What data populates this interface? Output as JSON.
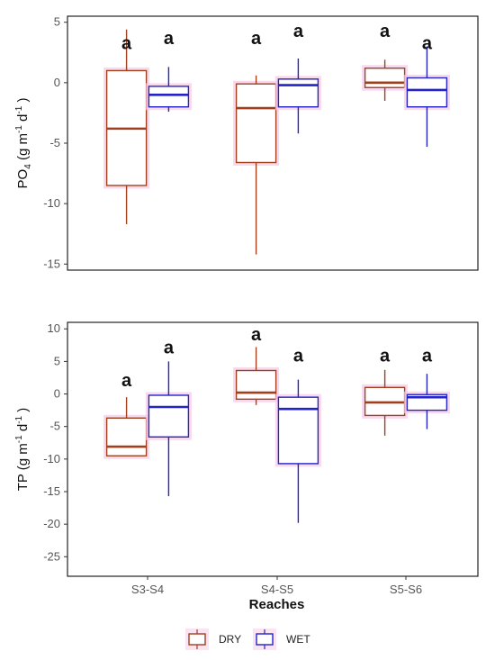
{
  "chart_data": [
    {
      "type": "box",
      "ylabel": "PO4 (g m-1 d-1)",
      "ylabel_parts": {
        "base": "PO",
        "sub": "4",
        "unit1": " (g m",
        "sup1": "-1",
        "unit2": " d",
        "sup2": "-1",
        "close": " )"
      },
      "ylim": [
        -15.5,
        5.5
      ],
      "yticks": [
        5,
        0,
        -5,
        -10,
        -15
      ],
      "ytick_labels": [
        "5",
        "0",
        "-5",
        "-10",
        "-15"
      ],
      "categories": [
        "S3-S4",
        "S4-S5",
        "S5-S6"
      ],
      "series": [
        {
          "name": "DRY",
          "color": "#a0401f",
          "boxes": [
            {
              "min": -11.7,
              "q1": -8.5,
              "median": -3.8,
              "q3": 1.0,
              "max": 4.4
            },
            {
              "min": -14.2,
              "q1": -6.6,
              "median": -2.1,
              "q3": -0.1,
              "max": 0.6
            },
            {
              "min": -1.5,
              "q1": -0.4,
              "median": 0.0,
              "q3": 1.2,
              "max": 1.9
            }
          ]
        },
        {
          "name": "WET",
          "color": "#2323c8",
          "boxes": [
            {
              "min": -2.4,
              "q1": -2.0,
              "median": -1.0,
              "q3": -0.3,
              "max": 1.3
            },
            {
              "min": -4.2,
              "q1": -2.0,
              "median": -0.2,
              "q3": 0.3,
              "max": 2.0
            },
            {
              "min": -5.3,
              "q1": -2.0,
              "median": -0.6,
              "q3": 0.4,
              "max": 3.0
            }
          ]
        }
      ],
      "annotations": [
        {
          "category": 0,
          "series": 0,
          "label": "a",
          "y": 2.8
        },
        {
          "category": 0,
          "series": 1,
          "label": "a",
          "y": 3.2
        },
        {
          "category": 1,
          "series": 0,
          "label": "a",
          "y": 3.2
        },
        {
          "category": 1,
          "series": 1,
          "label": "a",
          "y": 3.8
        },
        {
          "category": 2,
          "series": 0,
          "label": "a",
          "y": 3.8
        },
        {
          "category": 2,
          "series": 1,
          "label": "a",
          "y": 2.8
        }
      ]
    },
    {
      "type": "box",
      "ylabel": "TP (g m-1 d-1)",
      "ylabel_parts": {
        "base": "TP",
        "sub": "",
        "unit1": " (g m",
        "sup1": "-1",
        "unit2": " d",
        "sup2": "-1",
        "close": " )"
      },
      "ylim": [
        -28,
        11
      ],
      "yticks": [
        10,
        5,
        0,
        -5,
        -10,
        -15,
        -20,
        -25
      ],
      "ytick_labels": [
        "10",
        "5",
        "0",
        "-5",
        "-10",
        "-15",
        "-20",
        "-25"
      ],
      "xlabel": "Reaches",
      "categories": [
        "S3-S4",
        "S4-S5",
        "S5-S6"
      ],
      "series": [
        {
          "name": "DRY",
          "color": "#a0401f",
          "boxes": [
            {
              "min": -9.5,
              "q1": -9.5,
              "median": -8.1,
              "q3": -3.7,
              "max": -0.5
            },
            {
              "min": -1.7,
              "q1": -0.8,
              "median": 0.2,
              "q3": 3.6,
              "max": 7.2
            },
            {
              "min": -6.4,
              "q1": -3.3,
              "median": -1.3,
              "q3": 1.0,
              "max": 3.7
            }
          ]
        },
        {
          "name": "WET",
          "color": "#2323c8",
          "boxes": [
            {
              "min": -15.7,
              "q1": -6.6,
              "median": -2.0,
              "q3": -0.2,
              "max": 5.0
            },
            {
              "min": -19.8,
              "q1": -10.7,
              "median": -2.3,
              "q3": -0.5,
              "max": 2.2
            },
            {
              "min": -5.4,
              "q1": -2.5,
              "median": -0.5,
              "q3": -0.1,
              "max": 3.1
            }
          ]
        }
      ],
      "annotations": [
        {
          "category": 0,
          "series": 0,
          "label": "a",
          "y": 1.2
        },
        {
          "category": 0,
          "series": 1,
          "label": "a",
          "y": 6.2
        },
        {
          "category": 1,
          "series": 0,
          "label": "a",
          "y": 8.2
        },
        {
          "category": 1,
          "series": 1,
          "label": "a",
          "y": 5.0
        },
        {
          "category": 2,
          "series": 0,
          "label": "a",
          "y": 5.0
        },
        {
          "category": 2,
          "series": 1,
          "label": "a",
          "y": 5.0
        }
      ]
    }
  ],
  "legend": {
    "position": "bottom",
    "items": [
      {
        "label": "DRY",
        "color": "#a0401f"
      },
      {
        "label": "WET",
        "color": "#2323c8"
      }
    ]
  }
}
